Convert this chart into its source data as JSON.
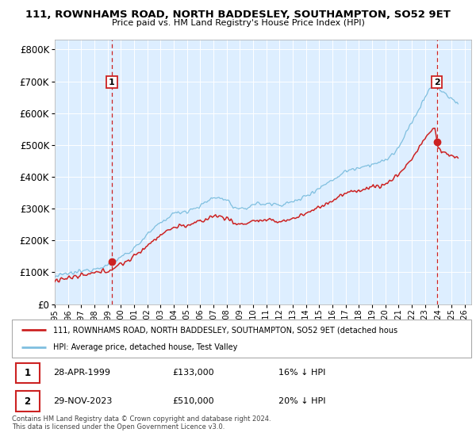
{
  "title": "111, ROWNHAMS ROAD, NORTH BADDESLEY, SOUTHAMPTON, SO52 9ET",
  "subtitle": "Price paid vs. HM Land Registry's House Price Index (HPI)",
  "legend_line1": "111, ROWNHAMS ROAD, NORTH BADDESLEY, SOUTHAMPTON, SO52 9ET (detached hous",
  "legend_line2": "HPI: Average price, detached house, Test Valley",
  "footnote": "Contains HM Land Registry data © Crown copyright and database right 2024.\nThis data is licensed under the Open Government Licence v3.0.",
  "table": [
    {
      "num": "1",
      "date": "28-APR-1999",
      "price": "£133,000",
      "hpi": "16% ↓ HPI"
    },
    {
      "num": "2",
      "date": "29-NOV-2023",
      "price": "£510,000",
      "hpi": "20% ↓ HPI"
    }
  ],
  "sale1_year": 1999.32,
  "sale1_price": 133000,
  "sale2_year": 2023.91,
  "sale2_price": 510000,
  "hpi_color": "#7fbfdf",
  "price_color": "#cc2222",
  "marker_color": "#cc2222",
  "vline_color": "#cc2222",
  "bg_color": "#ddeeff",
  "ylim": [
    0,
    830000
  ],
  "xlim_start": 1995,
  "xlim_end": 2026.5,
  "yticks": [
    0,
    100000,
    200000,
    300000,
    400000,
    500000,
    600000,
    700000,
    800000
  ],
  "xticks": [
    1995,
    1996,
    1997,
    1998,
    1999,
    2000,
    2001,
    2002,
    2003,
    2004,
    2005,
    2006,
    2007,
    2008,
    2009,
    2010,
    2011,
    2012,
    2013,
    2014,
    2015,
    2016,
    2017,
    2018,
    2019,
    2020,
    2021,
    2022,
    2023,
    2024,
    2025,
    2026
  ]
}
